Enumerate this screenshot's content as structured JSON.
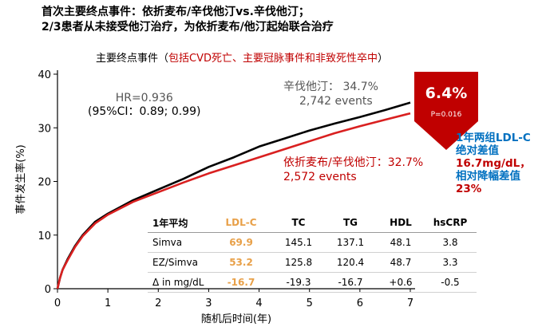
{
  "headline": {
    "line1": "首次主要终点事件：依折麦布/辛伐他汀vs.辛伐他汀；",
    "line2": "2/3患者从未接受他汀治疗，为依折麦布/他汀起始联合治疗"
  },
  "subtitle": {
    "prefix": "主要终点事件（",
    "red": "包括CVD死亡、主要冠脉事件和非致死性卒中",
    "suffix": "）"
  },
  "hr": {
    "line1": "HR=0.936",
    "line2": "(95%CI：0.89; 0.99)"
  },
  "control_label": {
    "line1": "辛伐他汀： 34.7%",
    "line2": "2,742 events"
  },
  "treatment_label": {
    "line1": "依折麦布/辛伐他汀：32.7%",
    "line2": "2,572 events"
  },
  "badge": {
    "value": "6.4%",
    "p": "P=0.016",
    "color": "#c00000"
  },
  "note": {
    "line1": "1年两组LDL-C",
    "line2": "绝对差值",
    "line3": "16.7mg/dL，",
    "line4": "相对降幅差值",
    "line5": "23%"
  },
  "table": {
    "header": [
      "1年平均",
      "LDL-C",
      "TC",
      "TG",
      "HDL",
      "hsCRP"
    ],
    "rows": [
      [
        "Simva",
        "69.9",
        "145.1",
        "137.1",
        "48.1",
        "3.8"
      ],
      [
        "EZ/Simva",
        "53.2",
        "125.8",
        "120.4",
        "48.7",
        "3.3"
      ],
      [
        "Δ in mg/dL",
        "-16.7",
        "-19.3",
        "-16.7",
        "+0.6",
        "-0.5"
      ]
    ]
  },
  "colors": {
    "simva": "#000000",
    "ez_simva": "#d92020",
    "accent": "#c00000",
    "note_blue": "#0070c0"
  },
  "chart_data": {
    "type": "line",
    "xlabel": "随机后时间(年)",
    "ylabel": "事件发生率(%)",
    "xlim": [
      0,
      7
    ],
    "ylim": [
      0,
      40
    ],
    "xticks": [
      0,
      1,
      2,
      3,
      4,
      5,
      6,
      7
    ],
    "yticks": [
      0,
      10,
      20,
      30,
      40
    ],
    "series": [
      {
        "name": "辛伐他汀",
        "color": "#000000",
        "points": [
          [
            0,
            0
          ],
          [
            0.05,
            2
          ],
          [
            0.1,
            3.5
          ],
          [
            0.2,
            5.5
          ],
          [
            0.35,
            8
          ],
          [
            0.5,
            10
          ],
          [
            0.75,
            12.5
          ],
          [
            1,
            14
          ],
          [
            1.5,
            16.5
          ],
          [
            2,
            18.5
          ],
          [
            2.5,
            20.5
          ],
          [
            3,
            22.7
          ],
          [
            3.5,
            24.5
          ],
          [
            4,
            26.5
          ],
          [
            4.5,
            28
          ],
          [
            5,
            29.5
          ],
          [
            5.5,
            30.8
          ],
          [
            6,
            32
          ],
          [
            6.5,
            33.3
          ],
          [
            7,
            34.7
          ]
        ]
      },
      {
        "name": "依折麦布/辛伐他汀",
        "color": "#d92020",
        "points": [
          [
            0,
            0
          ],
          [
            0.05,
            2
          ],
          [
            0.1,
            3.5
          ],
          [
            0.2,
            5.3
          ],
          [
            0.35,
            7.8
          ],
          [
            0.5,
            9.8
          ],
          [
            0.75,
            12.2
          ],
          [
            1,
            13.8
          ],
          [
            1.5,
            16.2
          ],
          [
            2,
            18
          ],
          [
            2.5,
            19.8
          ],
          [
            3,
            21.5
          ],
          [
            3.5,
            23
          ],
          [
            4,
            24.5
          ],
          [
            4.5,
            26
          ],
          [
            5,
            27.5
          ],
          [
            5.5,
            29
          ],
          [
            6,
            30.3
          ],
          [
            6.5,
            31.5
          ],
          [
            7,
            32.7
          ]
        ]
      }
    ]
  }
}
